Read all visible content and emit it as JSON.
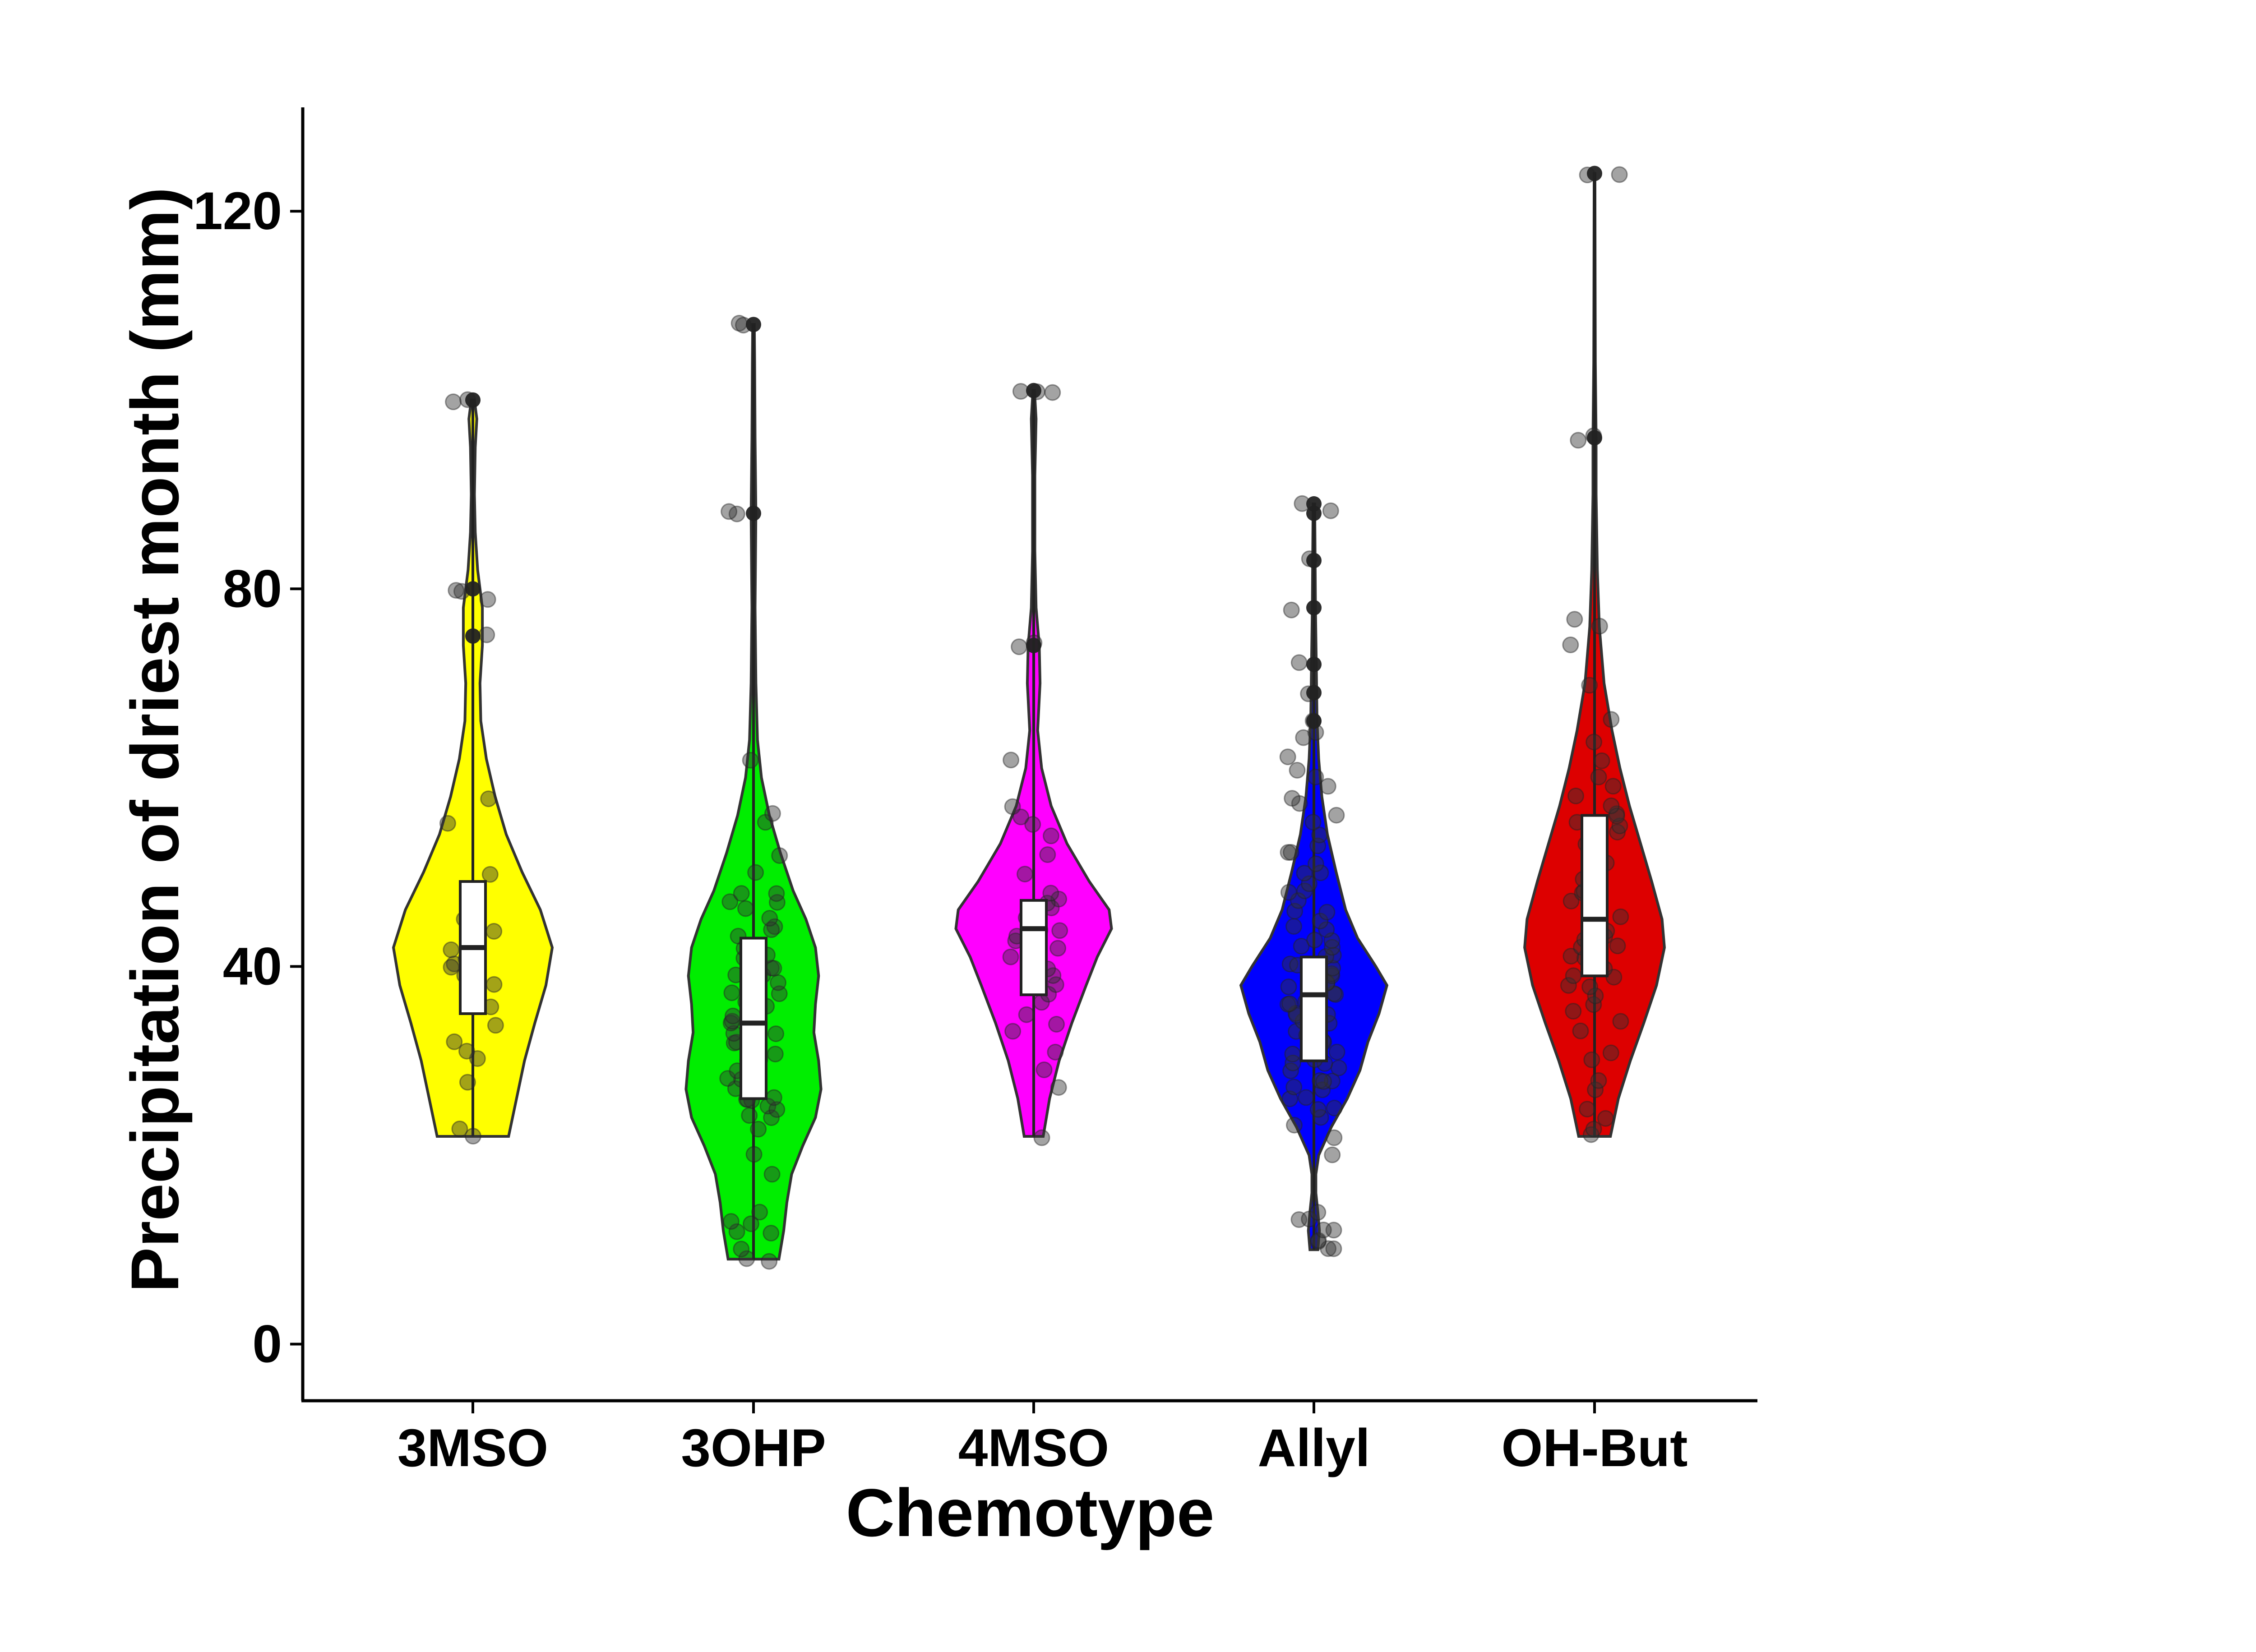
{
  "chart_data": {
    "type": "violin",
    "title": "",
    "xlabel": "Chemotype",
    "ylabel": "Precipitation of driest month (mm)",
    "ylim": [
      -6,
      131
    ],
    "yticks": [
      0,
      40,
      80,
      120
    ],
    "grid": false,
    "legend": "none",
    "series": [
      {
        "name": "3MSO",
        "color": "#ffff00",
        "summary": {
          "min": 22,
          "q1": 35,
          "median": 42,
          "q3": 49,
          "whisker_low": 22,
          "whisker_high": 58,
          "max": 100
        },
        "outliers": [
          75,
          80,
          100
        ],
        "density": [
          [
            22,
            0.45
          ],
          [
            26,
            0.55
          ],
          [
            30,
            0.65
          ],
          [
            34,
            0.78
          ],
          [
            38,
            0.92
          ],
          [
            42,
            1.0
          ],
          [
            46,
            0.85
          ],
          [
            50,
            0.62
          ],
          [
            54,
            0.42
          ],
          [
            58,
            0.28
          ],
          [
            62,
            0.17
          ],
          [
            66,
            0.1
          ],
          [
            70,
            0.09
          ],
          [
            74,
            0.12
          ],
          [
            78,
            0.12
          ],
          [
            82,
            0.06
          ],
          [
            86,
            0.03
          ],
          [
            90,
            0.02
          ],
          [
            95,
            0.03
          ],
          [
            98,
            0.05
          ],
          [
            100,
            0.02
          ]
        ],
        "points": [
          22,
          23,
          28,
          30,
          31,
          32,
          34,
          36,
          38,
          38,
          39,
          40,
          40,
          41,
          42,
          44,
          45,
          47,
          50,
          55,
          58,
          75,
          79,
          80,
          80,
          100,
          100
        ]
      },
      {
        "name": "3OHP",
        "color": "#00ee00",
        "summary": {
          "min": 9,
          "q1": 26,
          "median": 34,
          "q3": 43,
          "whisker_low": 9,
          "whisker_high": 64,
          "max": 108
        },
        "outliers": [
          88,
          108
        ],
        "density": [
          [
            9,
            0.32
          ],
          [
            12,
            0.38
          ],
          [
            15,
            0.42
          ],
          [
            18,
            0.48
          ],
          [
            21,
            0.62
          ],
          [
            24,
            0.78
          ],
          [
            27,
            0.85
          ],
          [
            30,
            0.82
          ],
          [
            33,
            0.76
          ],
          [
            36,
            0.78
          ],
          [
            39,
            0.82
          ],
          [
            42,
            0.78
          ],
          [
            45,
            0.66
          ],
          [
            48,
            0.5
          ],
          [
            52,
            0.34
          ],
          [
            56,
            0.2
          ],
          [
            60,
            0.1
          ],
          [
            64,
            0.05
          ],
          [
            70,
            0.03
          ],
          [
            78,
            0.02
          ],
          [
            88,
            0.03
          ],
          [
            96,
            0.02
          ],
          [
            104,
            0.015
          ],
          [
            108,
            0.01
          ]
        ],
        "points": [
          9,
          9,
          10,
          12,
          12,
          13,
          13,
          14,
          18,
          20,
          23,
          24,
          24,
          25,
          25,
          26,
          26,
          26,
          26,
          27,
          27,
          28,
          28,
          29,
          30,
          30,
          31,
          32,
          32,
          33,
          33,
          34,
          34,
          35,
          35,
          36,
          36,
          37,
          37,
          38,
          38,
          39,
          39,
          40,
          40,
          41,
          41,
          42,
          43,
          44,
          44,
          45,
          46,
          47,
          47,
          48,
          48,
          50,
          52,
          55,
          56,
          62,
          88,
          88,
          108,
          108
        ]
      },
      {
        "name": "4MSO",
        "color": "#ff00ff",
        "summary": {
          "min": 22,
          "q1": 37,
          "median": 44,
          "q3": 47,
          "whisker_low": 22,
          "whisker_high": 62,
          "max": 101
        },
        "outliers": [
          74,
          101
        ],
        "density": [
          [
            22,
            0.12
          ],
          [
            26,
            0.2
          ],
          [
            30,
            0.32
          ],
          [
            34,
            0.48
          ],
          [
            38,
            0.66
          ],
          [
            41,
            0.8
          ],
          [
            44,
            0.98
          ],
          [
            46,
            0.95
          ],
          [
            49,
            0.7
          ],
          [
            53,
            0.42
          ],
          [
            57,
            0.22
          ],
          [
            61,
            0.1
          ],
          [
            65,
            0.05
          ],
          [
            70,
            0.08
          ],
          [
            74,
            0.07
          ],
          [
            78,
            0.03
          ],
          [
            84,
            0.015
          ],
          [
            92,
            0.015
          ],
          [
            98,
            0.03
          ],
          [
            101,
            0.01
          ]
        ],
        "points": [
          22,
          27,
          29,
          31,
          33,
          34,
          35,
          36,
          37,
          38,
          39,
          40,
          41,
          42,
          43,
          43,
          44,
          44,
          45,
          45,
          46,
          46,
          47,
          47,
          48,
          50,
          52,
          54,
          55,
          56,
          57,
          62,
          74,
          74,
          101,
          101,
          101
        ]
      },
      {
        "name": "Allyl",
        "color": "#0000ff",
        "summary": {
          "min": 10,
          "q1": 30,
          "median": 37,
          "q3": 41,
          "whisker_low": 10,
          "whisker_high": 62,
          "max": 89
        },
        "outliers": [
          66,
          69,
          72,
          78,
          83,
          88,
          89
        ],
        "density": [
          [
            10,
            0.05
          ],
          [
            12,
            0.07
          ],
          [
            14,
            0.05
          ],
          [
            16,
            0.025
          ],
          [
            18,
            0.025
          ],
          [
            20,
            0.06
          ],
          [
            23,
            0.22
          ],
          [
            26,
            0.42
          ],
          [
            29,
            0.58
          ],
          [
            32,
            0.68
          ],
          [
            35,
            0.82
          ],
          [
            38,
            0.92
          ],
          [
            40,
            0.78
          ],
          [
            43,
            0.55
          ],
          [
            46,
            0.4
          ],
          [
            50,
            0.28
          ],
          [
            54,
            0.17
          ],
          [
            58,
            0.1
          ],
          [
            62,
            0.06
          ],
          [
            66,
            0.04
          ],
          [
            72,
            0.03
          ],
          [
            78,
            0.02
          ],
          [
            84,
            0.015
          ],
          [
            89,
            0.01
          ]
        ],
        "points": [
          10,
          10,
          11,
          11,
          12,
          12,
          13,
          13,
          14,
          20,
          22,
          23,
          24,
          25,
          25,
          26,
          26,
          27,
          27,
          28,
          28,
          28,
          29,
          29,
          30,
          30,
          30,
          31,
          31,
          32,
          32,
          33,
          33,
          34,
          34,
          35,
          35,
          35,
          36,
          36,
          36,
          37,
          37,
          37,
          38,
          38,
          38,
          38,
          39,
          39,
          39,
          40,
          40,
          40,
          41,
          41,
          42,
          42,
          43,
          43,
          44,
          44,
          45,
          46,
          46,
          47,
          48,
          48,
          49,
          50,
          50,
          51,
          52,
          52,
          53,
          54,
          55,
          56,
          57,
          58,
          59,
          60,
          61,
          62,
          64,
          65,
          66,
          69,
          72,
          78,
          83,
          88,
          89
        ]
      },
      {
        "name": "OH-But",
        "color": "#dd0000",
        "summary": {
          "min": 22,
          "q1": 39,
          "median": 45,
          "q3": 56,
          "whisker_low": 22,
          "whisker_high": 77,
          "max": 124
        },
        "outliers": [
          96,
          124
        ],
        "density": [
          [
            22,
            0.2
          ],
          [
            26,
            0.3
          ],
          [
            30,
            0.45
          ],
          [
            34,
            0.62
          ],
          [
            38,
            0.78
          ],
          [
            42,
            0.88
          ],
          [
            45,
            0.85
          ],
          [
            49,
            0.72
          ],
          [
            53,
            0.58
          ],
          [
            57,
            0.44
          ],
          [
            61,
            0.32
          ],
          [
            65,
            0.22
          ],
          [
            70,
            0.12
          ],
          [
            76,
            0.06
          ],
          [
            82,
            0.035
          ],
          [
            90,
            0.02
          ],
          [
            96,
            0.02
          ],
          [
            104,
            0.01
          ],
          [
            112,
            0.008
          ],
          [
            124,
            0.005
          ]
        ],
        "points": [
          22,
          23,
          24,
          25,
          27,
          28,
          30,
          31,
          33,
          34,
          35,
          36,
          37,
          38,
          38,
          39,
          39,
          40,
          40,
          41,
          41,
          42,
          42,
          43,
          43,
          44,
          44,
          45,
          45,
          46,
          47,
          48,
          48,
          49,
          50,
          51,
          52,
          53,
          54,
          55,
          55,
          56,
          56,
          57,
          58,
          59,
          60,
          62,
          64,
          66,
          70,
          74,
          76,
          77,
          96,
          96,
          124,
          124
        ]
      }
    ]
  }
}
